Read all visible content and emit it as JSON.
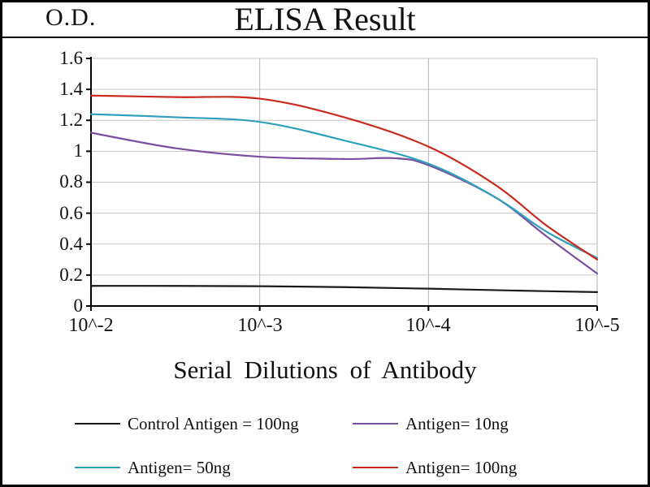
{
  "chart_data": {
    "type": "line",
    "title": "ELISA Result",
    "ylabel": "O.D.",
    "xlabel": "Serial Dilutions of Antibody",
    "ylim": [
      0,
      1.6
    ],
    "grid": true,
    "legend_position": "bottom",
    "x_tick_labels": [
      "10^-2",
      "10^-3",
      "10^-4",
      "10^-5"
    ],
    "y_tick_labels": [
      "1.6",
      "1.4",
      "1.2",
      "1",
      "0.8",
      "0.6",
      "0.4",
      "0.2",
      "0"
    ],
    "y_ticks": [
      0.2,
      0.4,
      0.6,
      0.8,
      1.0,
      1.2,
      1.4,
      1.6
    ],
    "series": [
      {
        "name": "Control Antigen = 100ng",
        "color": "#1a1a1a",
        "points": [
          [
            0,
            0.13
          ],
          [
            0.5,
            0.13
          ],
          [
            1,
            0.128
          ],
          [
            1.5,
            0.122
          ],
          [
            2,
            0.112
          ],
          [
            2.5,
            0.1
          ],
          [
            3,
            0.09
          ]
        ]
      },
      {
        "name": "Antigen= 10ng",
        "color": "#7a4fa0",
        "points": [
          [
            0,
            1.12
          ],
          [
            0.5,
            1.02
          ],
          [
            1,
            0.965
          ],
          [
            1.5,
            0.95
          ],
          [
            1.8,
            0.955
          ],
          [
            2,
            0.91
          ],
          [
            2.4,
            0.7
          ],
          [
            2.7,
            0.45
          ],
          [
            3,
            0.21
          ]
        ]
      },
      {
        "name": "Antigen= 50ng",
        "color": "#2fa0bd",
        "points": [
          [
            0,
            1.24
          ],
          [
            0.5,
            1.22
          ],
          [
            1,
            1.19
          ],
          [
            1.5,
            1.07
          ],
          [
            2,
            0.92
          ],
          [
            2.4,
            0.7
          ],
          [
            2.7,
            0.48
          ],
          [
            3,
            0.31
          ]
        ]
      },
      {
        "name": "Antigen= 100ng",
        "color": "#c92a1d",
        "points": [
          [
            0,
            1.36
          ],
          [
            0.5,
            1.35
          ],
          [
            1,
            1.34
          ],
          [
            1.5,
            1.22
          ],
          [
            2,
            1.03
          ],
          [
            2.4,
            0.78
          ],
          [
            2.7,
            0.52
          ],
          [
            3,
            0.3
          ]
        ]
      }
    ]
  }
}
